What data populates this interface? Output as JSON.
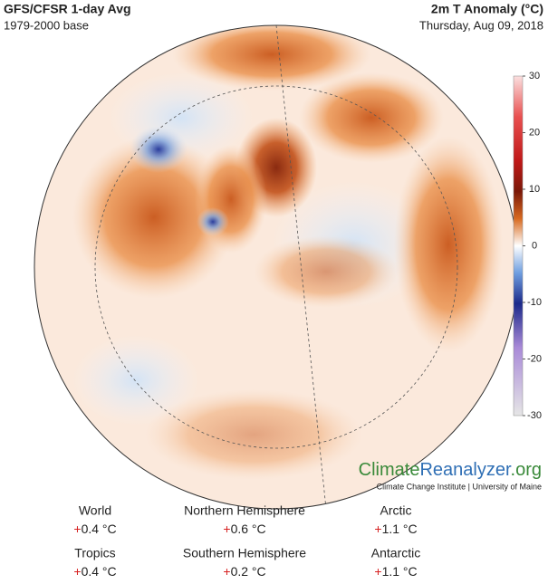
{
  "header": {
    "title": "GFS/CFSR 1-day Avg",
    "subtitle": "1979-2000 base",
    "variable": "2m T Anomaly (°C)",
    "date": "Thursday, Aug 09, 2018"
  },
  "colorbar": {
    "range": [
      -30,
      30
    ],
    "ticks": [
      30,
      20,
      10,
      0,
      -10,
      -20,
      -30
    ]
  },
  "logo": {
    "parts": [
      "Climate",
      "Reanalyzer",
      ".org"
    ],
    "credit": "Climate Change Institute | University of Maine"
  },
  "stats": [
    {
      "region": "World",
      "sign": "+",
      "value": "0.4 °C"
    },
    {
      "region": "Northern Hemisphere",
      "sign": "+",
      "value": "0.6 °C"
    },
    {
      "region": "Arctic",
      "sign": "+",
      "value": "1.1 °C"
    },
    {
      "region": "Tropics",
      "sign": "+",
      "value": "0.4 °C"
    },
    {
      "region": "Southern Hemisphere",
      "sign": "+",
      "value": "0.2 °C"
    },
    {
      "region": "Antarctic",
      "sign": "+",
      "value": "1.1 °C"
    }
  ]
}
